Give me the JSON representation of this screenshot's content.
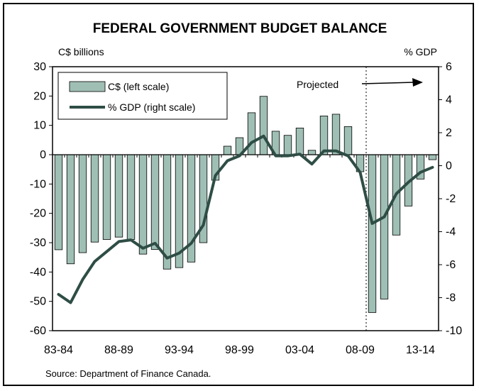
{
  "chart_data": {
    "type": "bar",
    "title": "FEDERAL GOVERNMENT BUDGET BALANCE",
    "ylabel_left": "C$ billions",
    "ylabel_right": "% GDP",
    "ylim_left": [
      -60,
      30
    ],
    "ylim_right": [
      -10,
      6
    ],
    "yticks_left": [
      30,
      20,
      10,
      0,
      -10,
      -20,
      -30,
      -40,
      -50,
      -60
    ],
    "yticks_right": [
      6,
      4,
      2,
      0,
      -2,
      -4,
      -6,
      -8,
      -10
    ],
    "x_tick_labels": [
      "83-84",
      "88-89",
      "93-94",
      "98-99",
      "03-04",
      "08-09",
      "13-14"
    ],
    "x_tick_label_indices": [
      0,
      5,
      10,
      15,
      20,
      25,
      30
    ],
    "categories": [
      "83-84",
      "84-85",
      "85-86",
      "86-87",
      "87-88",
      "88-89",
      "89-90",
      "90-91",
      "91-92",
      "92-93",
      "93-94",
      "94-95",
      "95-96",
      "96-97",
      "97-98",
      "98-99",
      "99-00",
      "00-01",
      "01-02",
      "02-03",
      "03-04",
      "04-05",
      "05-06",
      "06-07",
      "07-08",
      "08-09",
      "09-10",
      "10-11",
      "11-12",
      "12-13",
      "13-14",
      "14-15"
    ],
    "series": [
      {
        "name": "C$ (left scale)",
        "kind": "bar",
        "axis": "left",
        "color": "#9fbfb5",
        "values": [
          -32.4,
          -37.2,
          -33.4,
          -29.8,
          -28.9,
          -28.1,
          -28.9,
          -33.9,
          -32.3,
          -39.0,
          -38.5,
          -36.6,
          -30.0,
          -8.7,
          2.9,
          5.8,
          14.3,
          19.9,
          8.0,
          6.6,
          9.1,
          1.5,
          13.2,
          13.8,
          9.6,
          -5.8,
          -53.8,
          -49.2,
          -27.4,
          -17.5,
          -8.3,
          -1.7
        ]
      },
      {
        "name": "% GDP (right scale)",
        "kind": "line",
        "axis": "right",
        "color": "#2e4d45",
        "values": [
          -7.8,
          -8.3,
          -6.9,
          -5.8,
          -5.2,
          -4.6,
          -4.5,
          -5.0,
          -4.7,
          -5.6,
          -5.3,
          -4.7,
          -3.6,
          -0.6,
          0.3,
          0.6,
          1.4,
          1.8,
          0.6,
          0.6,
          0.7,
          0.1,
          0.9,
          0.9,
          0.6,
          -0.4,
          -3.5,
          -3.1,
          -1.7,
          -1.0,
          -0.4,
          -0.1
        ]
      }
    ],
    "annotation": "Projected",
    "projection_start_index": 26,
    "source": "Source: Department of Finance Canada."
  }
}
